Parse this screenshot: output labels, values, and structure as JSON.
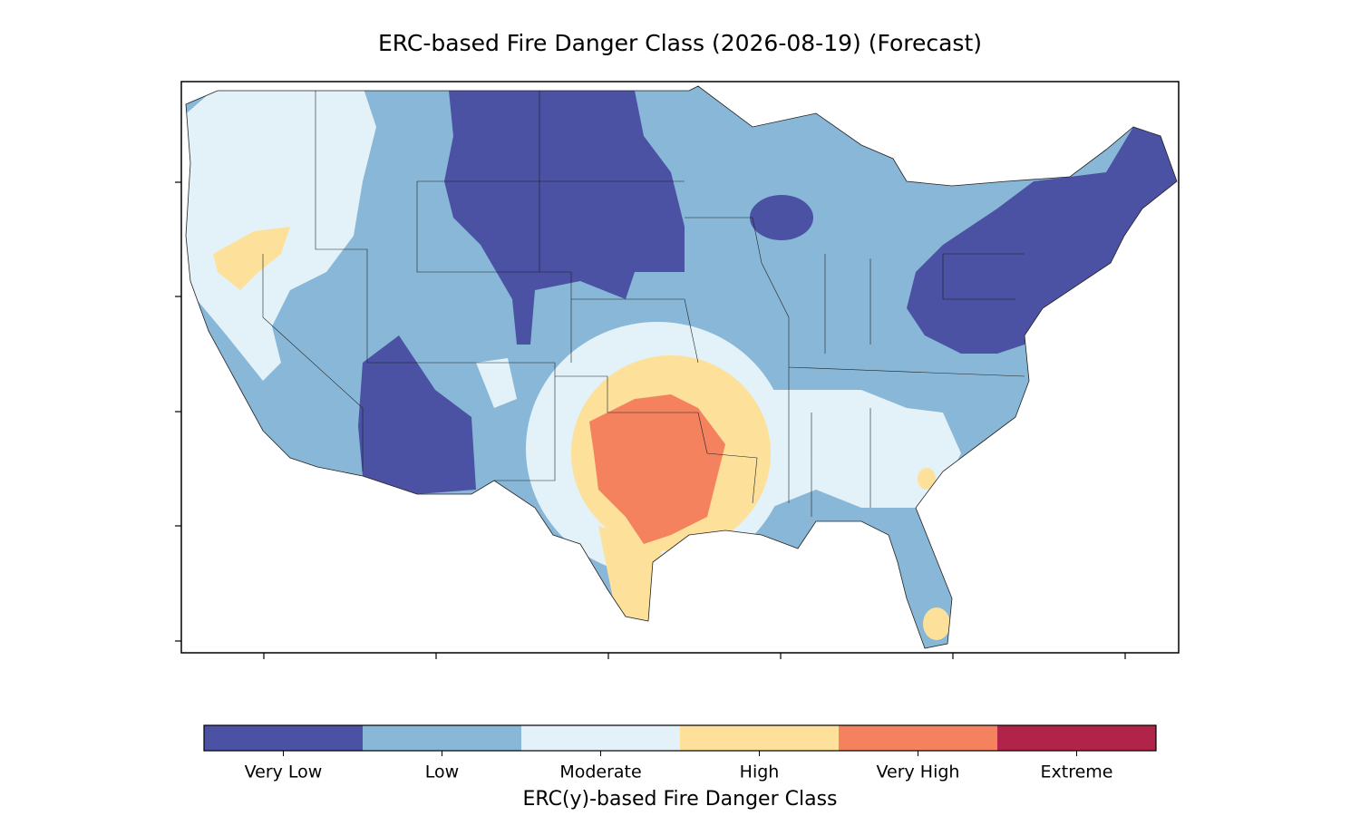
{
  "title": "ERC-based Fire Danger Class (2026-08-19) (Forecast)",
  "colorbar": {
    "label": "ERC(y)-based Fire Danger Class",
    "classes": [
      {
        "name": "Very Low",
        "color": "#4b51a3"
      },
      {
        "name": "Low",
        "color": "#88b7d7"
      },
      {
        "name": "Moderate",
        "color": "#e3f2f8"
      },
      {
        "name": "High",
        "color": "#fde09a"
      },
      {
        "name": "Very High",
        "color": "#f5825e"
      },
      {
        "name": "Extreme",
        "color": "#b2234a"
      }
    ]
  }
}
